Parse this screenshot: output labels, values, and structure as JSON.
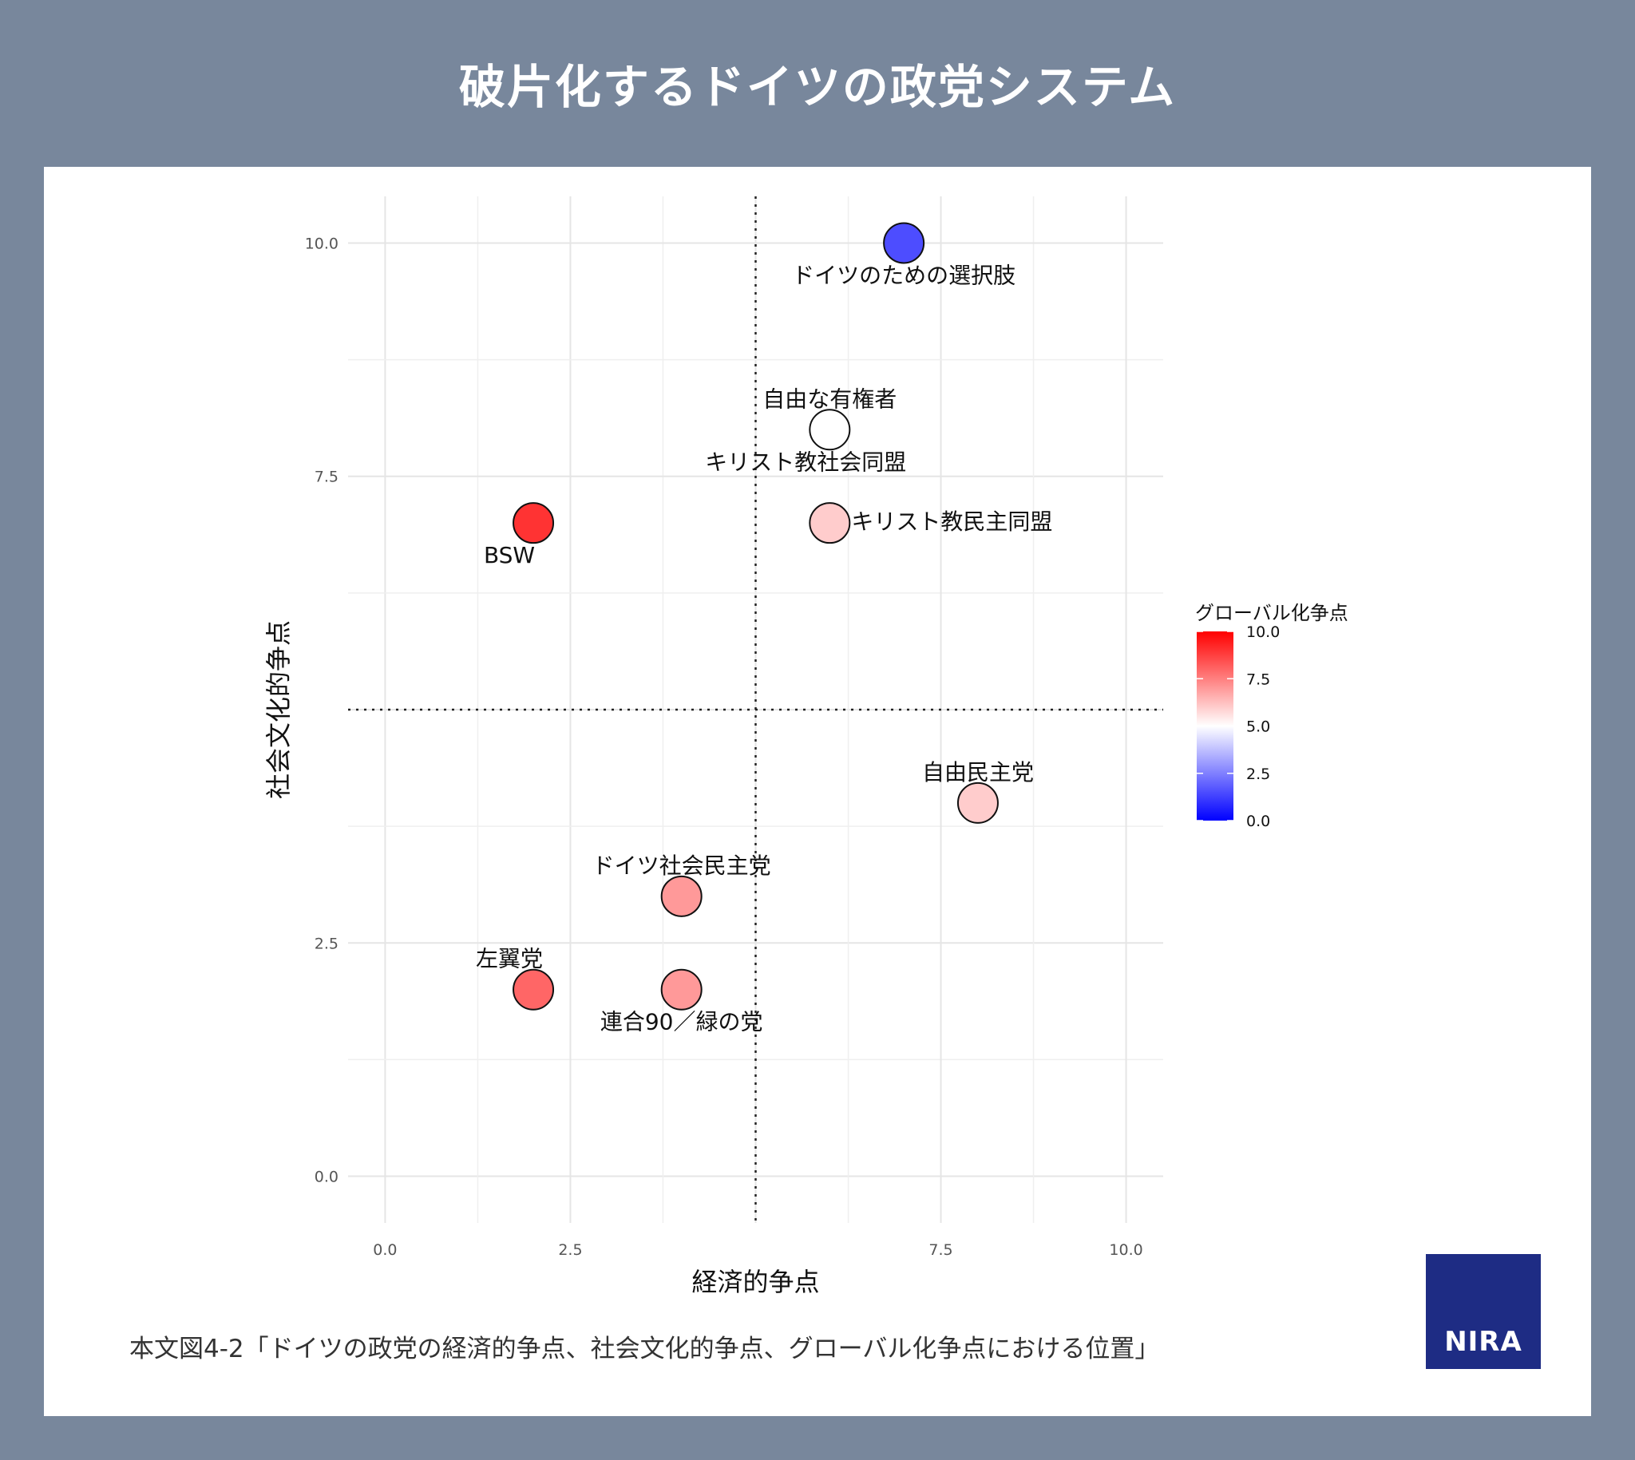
{
  "title": "破片化するドイツの政党システム",
  "caption": "本文図4-2「ドイツの政党の経済的争点、社会文化的争点、グローバル化争点における位置」",
  "logo_text": "NIRA",
  "colors": {
    "background": "#78879c",
    "panel": "#ffffff",
    "logo": "#1e2c84",
    "scale_low": "#0000ff",
    "scale_mid": "#ffffff",
    "scale_high": "#ff0000"
  },
  "chart_data": {
    "type": "scatter",
    "xlabel": "経済的争点",
    "ylabel": "社会文化的争点",
    "xlim": [
      -0.5,
      10.5
    ],
    "ylim": [
      -0.5,
      10.5
    ],
    "x_ticks": [
      "0.0",
      "2.5",
      "7.5",
      "10.0"
    ],
    "x_tick_values": [
      0,
      2.5,
      7.5,
      10
    ],
    "y_ticks": [
      "0.0",
      "2.5",
      "7.5",
      "10.0"
    ],
    "y_tick_values": [
      0,
      2.5,
      7.5,
      10
    ],
    "reference_lines": {
      "x": 5,
      "y": 5
    },
    "grid": true,
    "color_scale": {
      "title": "グローバル化争点",
      "range": [
        0,
        10
      ],
      "midpoint": 5,
      "ticks": [
        "10.0",
        "7.5",
        "5.0",
        "2.5",
        "0.0"
      ],
      "tick_values": [
        10,
        7.5,
        5,
        2.5,
        0
      ],
      "legend_position": "right"
    },
    "points": [
      {
        "label": "ドイツのための選択肢",
        "x": 7.0,
        "y": 10.0,
        "color_value": 1.5,
        "label_pos": "below"
      },
      {
        "label": "自由な有権者",
        "x": 6.0,
        "y": 8.0,
        "color_value": 5.0,
        "label_pos": "above"
      },
      {
        "label": "キリスト教社会同盟",
        "x": 6.0,
        "y": 8.0,
        "color_value": 5.0,
        "label_pos": "below-left"
      },
      {
        "label": "キリスト教民主同盟",
        "x": 6.0,
        "y": 7.0,
        "color_value": 6.0,
        "label_pos": "right"
      },
      {
        "label": "BSW",
        "x": 2.0,
        "y": 7.0,
        "color_value": 9.0,
        "label_pos": "below-left"
      },
      {
        "label": "自由民主党",
        "x": 8.0,
        "y": 4.0,
        "color_value": 6.0,
        "label_pos": "above"
      },
      {
        "label": "ドイツ社会民主党",
        "x": 4.0,
        "y": 3.0,
        "color_value": 7.0,
        "label_pos": "above"
      },
      {
        "label": "左翼党",
        "x": 2.0,
        "y": 2.0,
        "color_value": 8.0,
        "label_pos": "above-left"
      },
      {
        "label": "連合90／緑の党",
        "x": 4.0,
        "y": 2.0,
        "color_value": 7.0,
        "label_pos": "below"
      }
    ]
  }
}
